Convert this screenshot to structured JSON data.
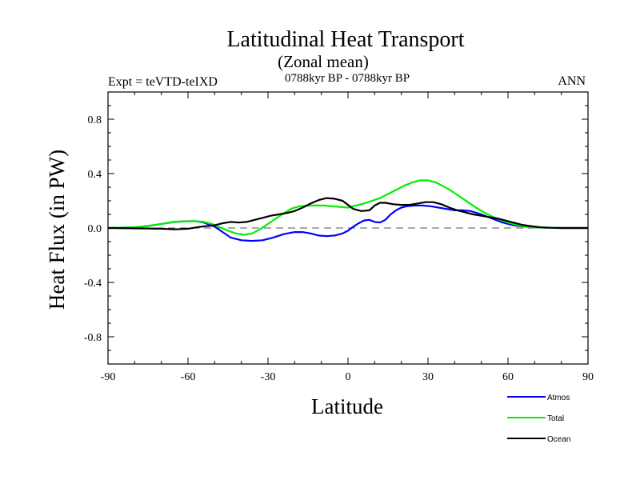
{
  "chart_data": {
    "type": "line",
    "title": "Latitudinal Heat Transport",
    "subtitle": "(Zonal mean)",
    "left_label": "Expt = teVTD-teIXD",
    "center_label": "0788kyr BP - 0788kyr BP",
    "right_label": "ANN",
    "xlabel": "Latitude",
    "ylabel": "Heat Flux (in PW)",
    "xlim": [
      -90,
      90
    ],
    "ylim": [
      -1.0,
      1.0
    ],
    "x_ticks": [
      -90,
      -60,
      -30,
      0,
      30,
      60,
      90
    ],
    "x_tick_labels": [
      "-90",
      "-60",
      "-30",
      "0",
      "30",
      "60",
      "90"
    ],
    "y_ticks": [
      -0.8,
      -0.4,
      0.0,
      0.4,
      0.8
    ],
    "y_tick_labels": [
      "-0.8",
      "-0.4",
      "0.0",
      "0.4",
      "0.8"
    ],
    "zero_line": "dashed",
    "legend_position": "bottom-right, below plot",
    "series": [
      {
        "name": "Atmos",
        "color": "#0000ff",
        "points": [
          [
            -90,
            0
          ],
          [
            -80,
            0.005
          ],
          [
            -75,
            0.015
          ],
          [
            -70,
            0.03
          ],
          [
            -65,
            0.045
          ],
          [
            -60,
            0.05
          ],
          [
            -57,
            0.05
          ],
          [
            -54,
            0.04
          ],
          [
            -50,
            0.01
          ],
          [
            -47,
            -0.03
          ],
          [
            -44,
            -0.07
          ],
          [
            -40,
            -0.09
          ],
          [
            -36,
            -0.095
          ],
          [
            -32,
            -0.09
          ],
          [
            -28,
            -0.07
          ],
          [
            -24,
            -0.045
          ],
          [
            -20,
            -0.03
          ],
          [
            -17,
            -0.03
          ],
          [
            -14,
            -0.04
          ],
          [
            -11,
            -0.055
          ],
          [
            -8,
            -0.06
          ],
          [
            -5,
            -0.055
          ],
          [
            -2,
            -0.04
          ],
          [
            0,
            -0.02
          ],
          [
            2,
            0.01
          ],
          [
            4,
            0.035
          ],
          [
            6,
            0.055
          ],
          [
            8,
            0.06
          ],
          [
            10,
            0.045
          ],
          [
            12,
            0.04
          ],
          [
            14,
            0.06
          ],
          [
            16,
            0.1
          ],
          [
            18,
            0.13
          ],
          [
            20,
            0.15
          ],
          [
            22,
            0.16
          ],
          [
            25,
            0.165
          ],
          [
            28,
            0.165
          ],
          [
            31,
            0.16
          ],
          [
            34,
            0.15
          ],
          [
            37,
            0.14
          ],
          [
            40,
            0.13
          ],
          [
            43,
            0.13
          ],
          [
            46,
            0.125
          ],
          [
            50,
            0.1
          ],
          [
            54,
            0.07
          ],
          [
            58,
            0.04
          ],
          [
            62,
            0.02
          ],
          [
            66,
            0.01
          ],
          [
            70,
            0.005
          ],
          [
            75,
            0.002
          ],
          [
            80,
            0
          ],
          [
            90,
            0
          ]
        ]
      },
      {
        "name": "Total",
        "color": "#00ee00",
        "points": [
          [
            -90,
            0
          ],
          [
            -80,
            0.005
          ],
          [
            -75,
            0.015
          ],
          [
            -70,
            0.03
          ],
          [
            -65,
            0.045
          ],
          [
            -60,
            0.05
          ],
          [
            -57,
            0.05
          ],
          [
            -54,
            0.045
          ],
          [
            -51,
            0.03
          ],
          [
            -48,
            0.005
          ],
          [
            -45,
            -0.02
          ],
          [
            -42,
            -0.04
          ],
          [
            -39,
            -0.05
          ],
          [
            -36,
            -0.04
          ],
          [
            -33,
            -0.01
          ],
          [
            -30,
            0.03
          ],
          [
            -27,
            0.07
          ],
          [
            -24,
            0.11
          ],
          [
            -21,
            0.145
          ],
          [
            -18,
            0.16
          ],
          [
            -15,
            0.165
          ],
          [
            -12,
            0.165
          ],
          [
            -9,
            0.165
          ],
          [
            -6,
            0.16
          ],
          [
            -3,
            0.155
          ],
          [
            0,
            0.15
          ],
          [
            3,
            0.165
          ],
          [
            6,
            0.18
          ],
          [
            9,
            0.2
          ],
          [
            12,
            0.22
          ],
          [
            15,
            0.25
          ],
          [
            18,
            0.28
          ],
          [
            21,
            0.31
          ],
          [
            24,
            0.335
          ],
          [
            27,
            0.35
          ],
          [
            30,
            0.35
          ],
          [
            33,
            0.335
          ],
          [
            36,
            0.305
          ],
          [
            39,
            0.27
          ],
          [
            42,
            0.23
          ],
          [
            45,
            0.19
          ],
          [
            48,
            0.15
          ],
          [
            51,
            0.115
          ],
          [
            54,
            0.085
          ],
          [
            57,
            0.06
          ],
          [
            60,
            0.04
          ],
          [
            63,
            0.025
          ],
          [
            66,
            0.01
          ],
          [
            70,
            0.004
          ],
          [
            75,
            0.001
          ],
          [
            80,
            0
          ],
          [
            90,
            0
          ]
        ]
      },
      {
        "name": "Ocean",
        "color": "#000000",
        "points": [
          [
            -90,
            0
          ],
          [
            -70,
            -0.005
          ],
          [
            -65,
            -0.01
          ],
          [
            -60,
            -0.005
          ],
          [
            -55,
            0.01
          ],
          [
            -50,
            0.02
          ],
          [
            -47,
            0.035
          ],
          [
            -44,
            0.045
          ],
          [
            -41,
            0.04
          ],
          [
            -38,
            0.045
          ],
          [
            -35,
            0.06
          ],
          [
            -32,
            0.075
          ],
          [
            -29,
            0.09
          ],
          [
            -26,
            0.1
          ],
          [
            -23,
            0.11
          ],
          [
            -20,
            0.125
          ],
          [
            -17,
            0.15
          ],
          [
            -14,
            0.18
          ],
          [
            -11,
            0.205
          ],
          [
            -8,
            0.22
          ],
          [
            -5,
            0.215
          ],
          [
            -2,
            0.2
          ],
          [
            0,
            0.17
          ],
          [
            2,
            0.14
          ],
          [
            5,
            0.125
          ],
          [
            8,
            0.13
          ],
          [
            10,
            0.165
          ],
          [
            12,
            0.185
          ],
          [
            14,
            0.185
          ],
          [
            17,
            0.175
          ],
          [
            20,
            0.17
          ],
          [
            23,
            0.17
          ],
          [
            26,
            0.18
          ],
          [
            29,
            0.19
          ],
          [
            32,
            0.19
          ],
          [
            35,
            0.175
          ],
          [
            38,
            0.15
          ],
          [
            41,
            0.13
          ],
          [
            44,
            0.115
          ],
          [
            47,
            0.1
          ],
          [
            50,
            0.09
          ],
          [
            53,
            0.08
          ],
          [
            56,
            0.07
          ],
          [
            59,
            0.055
          ],
          [
            62,
            0.04
          ],
          [
            65,
            0.025
          ],
          [
            68,
            0.015
          ],
          [
            72,
            0.005
          ],
          [
            76,
            0.002
          ],
          [
            80,
            0
          ],
          [
            90,
            0
          ]
        ]
      }
    ]
  }
}
